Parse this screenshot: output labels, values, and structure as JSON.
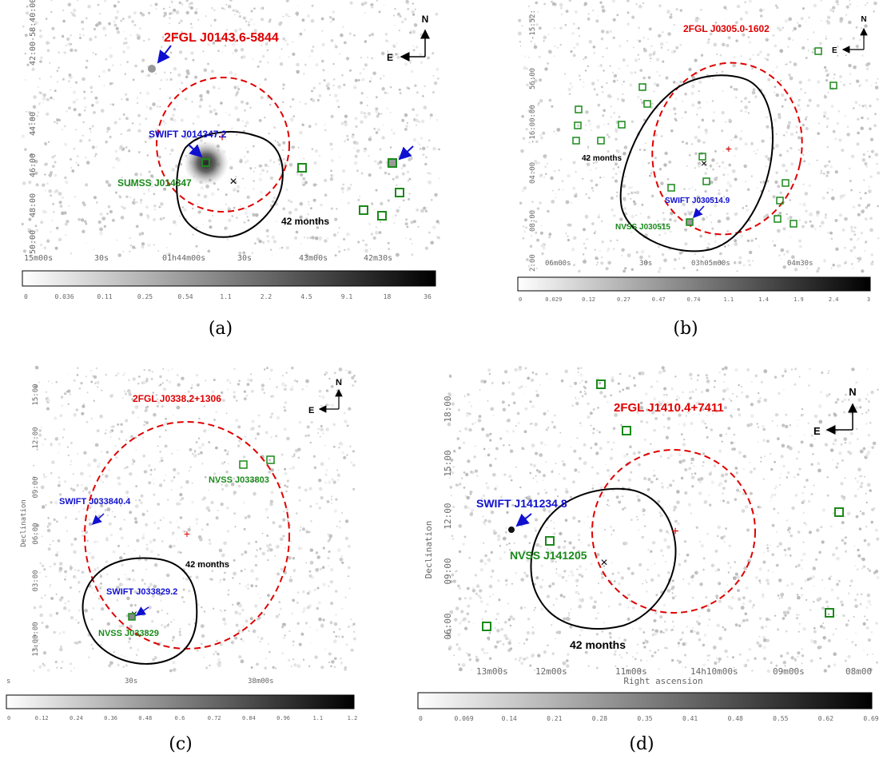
{
  "colors": {
    "fermi": "#e00000",
    "swift": "#1010d0",
    "counterpart": "#1a8a1a",
    "contour": "#000000",
    "tick": "#666666"
  },
  "panels": [
    {
      "id": "a",
      "caption": "(a)",
      "fermi_label": "2FGL J0143.6-5844",
      "swift_label": "SWIFT J014347.2",
      "counterpart_label": "SUMSS J014347",
      "contour_label": "42 months",
      "compass_n": "N",
      "compass_e": "E",
      "xticks": [
        "15m00s",
        "30s",
        "01h44m00s",
        "30s",
        "43m00s",
        "42m30s"
      ],
      "yticks": [
        "42:00-58:40:00",
        "38:00",
        "44:00",
        "46:00",
        "48:00",
        "50:00"
      ],
      "colorbar_ticks": [
        "0",
        "0.036",
        "0.11",
        "0.25",
        "0.54",
        "1.1",
        "2.2",
        "4.5",
        "9.1",
        "18",
        "36"
      ]
    },
    {
      "id": "b",
      "caption": "(b)",
      "fermi_label": "2FGL J0305.0-1602",
      "swift_label": "SWIFT J030514.9",
      "counterpart_label": "NVSS J030515",
      "contour_label": "42 months",
      "compass_n": "N",
      "compass_e": "E",
      "xticks": [
        "06m00s",
        "30s",
        "03h05m00s",
        "04m30s"
      ],
      "yticks": [
        "-15:52:",
        "56:00",
        "-16:00:00",
        "04:00",
        "08:00",
        "2:00"
      ],
      "colorbar_ticks": [
        "0",
        "0.029",
        "0.12",
        "0.27",
        "0.47",
        "0.74",
        "1.1",
        "1.4",
        "1.9",
        "2.4",
        "3"
      ]
    },
    {
      "id": "c",
      "caption": "(c)",
      "fermi_label": "2FGL J0338.2+1306",
      "swift_label": "SWIFT J033829.2",
      "swift_label_2": "SWIFT J033840.4",
      "counterpart_label": "NVSS J033829",
      "counterpart_label_2": "NVSS J033803",
      "contour_label": "42 months",
      "compass_n": "N",
      "compass_e": "E",
      "ylabel": "Declination",
      "xticks": [
        "s",
        "30s",
        "38m00s"
      ],
      "yticks": [
        "15:00",
        "12:00",
        "09:00",
        "06:00",
        "03:00",
        "13:00:00"
      ],
      "colorbar_ticks": [
        "0",
        "0.12",
        "0.24",
        "0.36",
        "0.48",
        "0.6",
        "0.72",
        "0.84",
        "0.96",
        "1.1",
        "1.2"
      ]
    },
    {
      "id": "d",
      "caption": "(d)",
      "fermi_label": "2FGL J1410.4+7411",
      "swift_label": "SWIFT J141234.8",
      "counterpart_label": "NVSS J141205",
      "contour_label": "42 months",
      "compass_n": "N",
      "compass_e": "E",
      "ylabel": "Declination",
      "xlabel": "Right ascension",
      "xticks": [
        "13m00s",
        "12m00s",
        "11m00s",
        "14h10m00s",
        "09m00s",
        "08m00"
      ],
      "yticks": [
        "18:00",
        "15:00",
        "12:00",
        "09:00",
        "06:00"
      ],
      "colorbar_ticks": [
        "0",
        "0.069",
        "0.14",
        "0.21",
        "0.28",
        "0.35",
        "0.41",
        "0.48",
        "0.55",
        "0.62",
        "0.69"
      ]
    }
  ]
}
